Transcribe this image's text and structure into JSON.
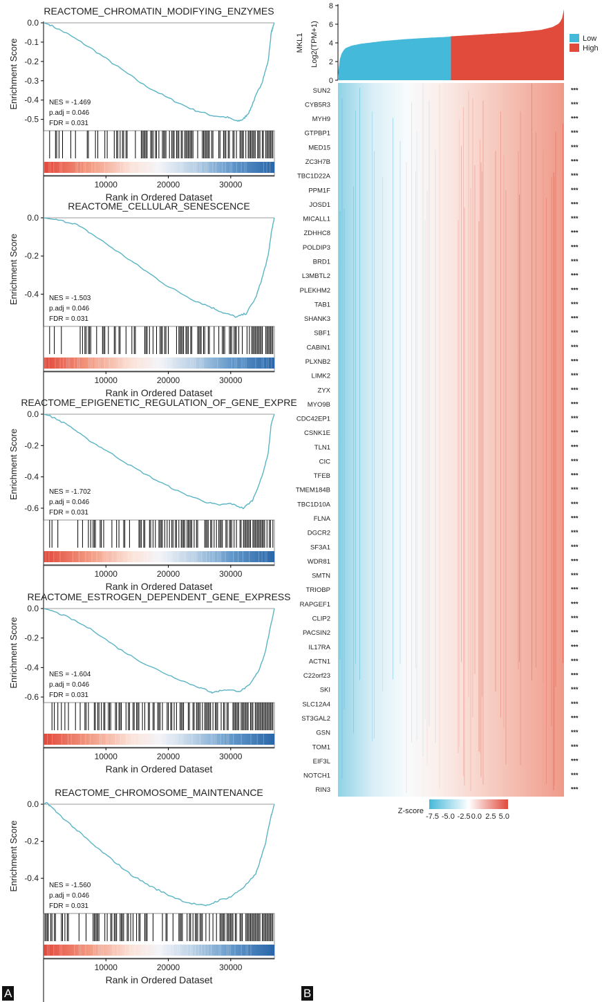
{
  "panels": {
    "a_label": "A",
    "b_label": "B"
  },
  "colors": {
    "curve": "#5ab4c4",
    "low": "#45b9d9",
    "high": "#e04b3c",
    "bar": "#000000"
  },
  "chart_data": [
    {
      "type": "line",
      "title": "REACTOME_CHROMATIN_MODIFYING_ENZYMES",
      "xlabel": "Rank in Ordered Dataset",
      "ylabel": "Enrichment Score",
      "xlim": [
        0,
        37000
      ],
      "ylim": [
        -0.53,
        0.0
      ],
      "yticks": [
        0.0,
        -0.1,
        -0.2,
        -0.3,
        -0.4,
        -0.5
      ],
      "ytick_labels": [
        "0.0",
        "-0.1",
        "-0.2",
        "-0.3",
        "-0.4",
        "-0.5"
      ],
      "xticks": [
        10000,
        20000,
        30000
      ],
      "xtick_labels": [
        "10000",
        "20000",
        "30000"
      ],
      "stats": [
        "NES = -1.469",
        "p.adj = 0.046",
        "FDR = 0.031"
      ],
      "x": [
        0,
        1000,
        4000,
        8000,
        12000,
        16000,
        20000,
        24000,
        27000,
        29500,
        31000,
        32000,
        33000,
        34000,
        35000,
        36000,
        36500,
        37000
      ],
      "y": [
        0.0,
        -0.01,
        -0.06,
        -0.14,
        -0.23,
        -0.32,
        -0.39,
        -0.45,
        -0.48,
        -0.49,
        -0.51,
        -0.5,
        -0.46,
        -0.38,
        -0.31,
        -0.2,
        -0.05,
        0.0
      ]
    },
    {
      "type": "line",
      "title": "REACTOME_CELLULAR_SENESCENCE",
      "xlabel": "Rank in Ordered Dataset",
      "ylabel": "Enrichment Score",
      "xlim": [
        0,
        37000
      ],
      "ylim": [
        -0.54,
        0.0
      ],
      "yticks": [
        0.0,
        -0.2,
        -0.4
      ],
      "ytick_labels": [
        "0.0",
        "-0.2",
        "-0.4"
      ],
      "xticks": [
        10000,
        20000,
        30000
      ],
      "xtick_labels": [
        "10000",
        "20000",
        "30000"
      ],
      "stats": [
        "NES = -1.503",
        "p.adj = 0.046",
        "FDR = 0.031"
      ],
      "x": [
        0,
        2000,
        5000,
        8000,
        12000,
        16000,
        20000,
        24000,
        27000,
        29000,
        31000,
        32500,
        34000,
        35000,
        36000,
        36500,
        37000
      ],
      "y": [
        0.0,
        -0.01,
        -0.03,
        -0.09,
        -0.18,
        -0.27,
        -0.36,
        -0.43,
        -0.47,
        -0.5,
        -0.52,
        -0.5,
        -0.42,
        -0.32,
        -0.2,
        -0.08,
        0.0
      ]
    },
    {
      "type": "line",
      "title": "REACTOME_EPIGENETIC_REGULATION_OF_GENE_EXPRE",
      "xlabel": "Rank in Ordered Dataset",
      "ylabel": "Enrichment Score",
      "xlim": [
        0,
        37000
      ],
      "ylim": [
        -0.64,
        0.0
      ],
      "yticks": [
        0.0,
        -0.2,
        -0.4,
        -0.6
      ],
      "ytick_labels": [
        "0.0",
        "-0.2",
        "-0.4",
        "-0.6"
      ],
      "xticks": [
        10000,
        20000,
        30000
      ],
      "xtick_labels": [
        "10000",
        "20000",
        "30000"
      ],
      "stats": [
        "NES = -1.702",
        "p.adj = 0.046",
        "FDR = 0.031"
      ],
      "x": [
        0,
        1000,
        4000,
        7000,
        10000,
        14000,
        18000,
        22000,
        26000,
        28000,
        30000,
        32000,
        33500,
        35000,
        36000,
        36500,
        37000
      ],
      "y": [
        0.0,
        -0.01,
        -0.07,
        -0.16,
        -0.23,
        -0.33,
        -0.42,
        -0.5,
        -0.56,
        -0.58,
        -0.57,
        -0.6,
        -0.55,
        -0.4,
        -0.25,
        -0.06,
        0.0
      ]
    },
    {
      "type": "line",
      "title": "REACTOME_ESTROGEN_DEPENDENT_GENE_EXPRESS",
      "xlabel": "Rank in Ordered Dataset",
      "ylabel": "Enrichment Score",
      "xlim": [
        0,
        37000
      ],
      "ylim": [
        -0.6,
        0.0
      ],
      "yticks": [
        0.0,
        -0.2,
        -0.4,
        -0.6
      ],
      "ytick_labels": [
        "0.0",
        "-0.2",
        "-0.4",
        "-0.6"
      ],
      "xticks": [
        10000,
        20000,
        30000
      ],
      "xtick_labels": [
        "10000",
        "20000",
        "30000"
      ],
      "stats": [
        "NES = -1.604",
        "p.adj = 0.046",
        "FDR = 0.031"
      ],
      "x": [
        0,
        1000,
        4000,
        8000,
        12000,
        16000,
        20000,
        24000,
        26000,
        27000,
        29000,
        31500,
        33000,
        34500,
        35500,
        36500,
        37000
      ],
      "y": [
        0.0,
        -0.01,
        -0.06,
        -0.15,
        -0.27,
        -0.37,
        -0.45,
        -0.52,
        -0.55,
        -0.57,
        -0.55,
        -0.56,
        -0.52,
        -0.42,
        -0.3,
        -0.1,
        0.0
      ]
    },
    {
      "type": "line",
      "title": "REACTOME_CHROMOSOME_MAINTENANCE",
      "xlabel": "Rank in Ordered Dataset",
      "ylabel": "Enrichment Score",
      "xlim": [
        0,
        37000
      ],
      "ylim": [
        -0.56,
        0.0
      ],
      "yticks": [
        0.0,
        -0.2,
        -0.4
      ],
      "ytick_labels": [
        "0.0",
        "-0.2",
        "-0.4"
      ],
      "xticks": [
        10000,
        20000,
        30000
      ],
      "xtick_labels": [
        "10000",
        "20000",
        "30000"
      ],
      "stats": [
        "NES = -1.560",
        "p.adj = 0.046",
        "FDR = 0.031"
      ],
      "x": [
        0,
        500,
        2000,
        5000,
        8000,
        11000,
        14000,
        17000,
        20000,
        23000,
        26000,
        28000,
        30000,
        32000,
        34000,
        35500,
        36500,
        37000
      ],
      "y": [
        0.0,
        0.01,
        -0.04,
        -0.13,
        -0.22,
        -0.3,
        -0.38,
        -0.44,
        -0.49,
        -0.53,
        -0.55,
        -0.52,
        -0.5,
        -0.45,
        -0.38,
        -0.22,
        -0.06,
        0.0
      ]
    },
    {
      "type": "area",
      "ylabel_top": "MKL1",
      "ylabel": "Log2(TPM+1)",
      "ylim": [
        0,
        8
      ],
      "yticks": [
        0,
        2,
        4,
        6,
        8
      ],
      "ytick_labels": [
        "0",
        "2",
        "4",
        "6",
        "8"
      ],
      "legend": [
        "Low",
        "High"
      ],
      "x": [
        0,
        0.01,
        0.03,
        0.06,
        0.1,
        0.2,
        0.3,
        0.4,
        0.49,
        0.5,
        0.6,
        0.7,
        0.8,
        0.9,
        0.95,
        0.98,
        0.995,
        1.0
      ],
      "y": [
        0.5,
        2.6,
        3.4,
        3.7,
        3.9,
        4.2,
        4.4,
        4.55,
        4.65,
        4.7,
        4.85,
        5.0,
        5.15,
        5.4,
        5.7,
        6.1,
        6.8,
        7.6
      ]
    },
    {
      "type": "heatmap",
      "genes": [
        "SUN2",
        "CYB5R3",
        "MYH9",
        "GTPBP1",
        "MED15",
        "ZC3H7B",
        "TBC1D22A",
        "PPM1F",
        "JOSD1",
        "MICALL1",
        "ZDHHC8",
        "POLDIP3",
        "BRD1",
        "L3MBTL2",
        "PLEKHM2",
        "TAB1",
        "SHANK3",
        "SBF1",
        "CABIN1",
        "PLXNB2",
        "LIMK2",
        "ZYX",
        "MYO9B",
        "CDC42EP1",
        "CSNK1E",
        "TLN1",
        "CIC",
        "TFEB",
        "TMEM184B",
        "TBC1D10A",
        "FLNA",
        "DGCR2",
        "SF3A1",
        "WDR81",
        "SMTN",
        "TRIOBP",
        "RAPGEF1",
        "CLIP2",
        "PACSIN2",
        "IL17RA",
        "ACTN1",
        "C22orf23",
        "SKI",
        "SLC12A4",
        "ST3GAL2",
        "GSN",
        "TOM1",
        "EIF3L",
        "NOTCH1",
        "RIN3"
      ],
      "significance": "***",
      "colorbar_title": "Z-score",
      "colorbar_ticks": [
        -7.5,
        -5.0,
        -2.5,
        0.0,
        2.5,
        5.0
      ],
      "colorbar_tick_labels": [
        "-7.5",
        "-5.0",
        "-2.5",
        "0.0",
        "2.5",
        "5.0"
      ]
    }
  ]
}
